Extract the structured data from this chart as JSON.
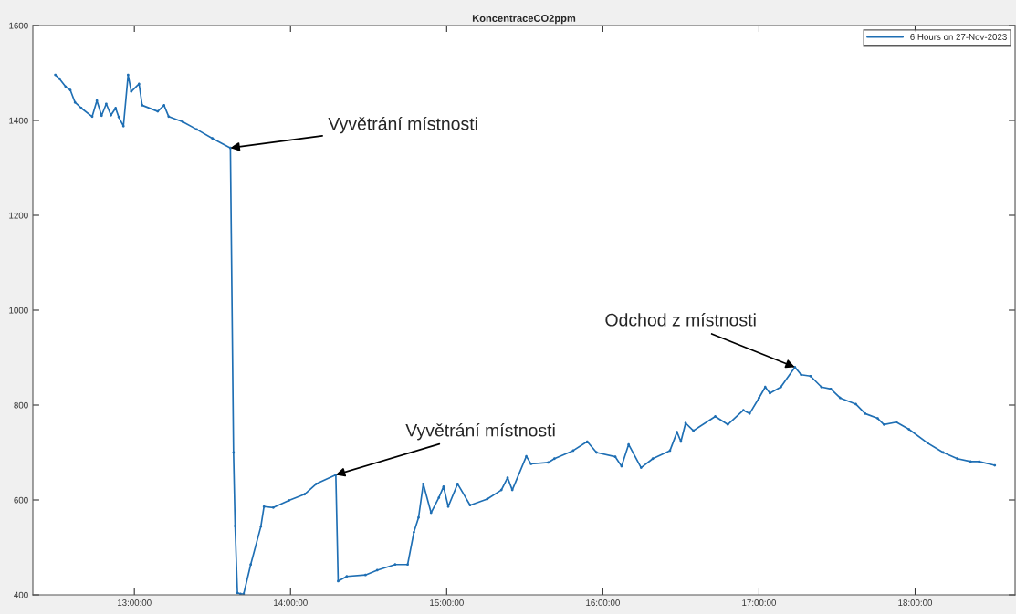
{
  "chart_data": {
    "type": "line",
    "title": "KoncentraceCO2ppm",
    "x": [
      12.494,
      12.52,
      12.56,
      12.59,
      12.62,
      12.66,
      12.73,
      12.76,
      12.79,
      12.82,
      12.85,
      12.88,
      12.9,
      12.93,
      12.96,
      12.98,
      13.03,
      13.05,
      13.15,
      13.19,
      13.22,
      13.31,
      13.4,
      13.5,
      13.615,
      13.635,
      13.645,
      13.66,
      13.68,
      13.7,
      13.745,
      13.81,
      13.83,
      13.89,
      13.99,
      14.09,
      14.165,
      14.29,
      14.305,
      14.36,
      14.48,
      14.555,
      14.67,
      14.75,
      14.79,
      14.82,
      14.85,
      14.9,
      14.95,
      14.98,
      15.01,
      15.07,
      15.15,
      15.26,
      15.35,
      15.39,
      15.42,
      15.51,
      15.54,
      15.65,
      15.69,
      15.81,
      15.9,
      15.96,
      16.08,
      16.12,
      16.165,
      16.245,
      16.32,
      16.43,
      16.475,
      16.5,
      16.53,
      16.58,
      16.72,
      16.8,
      16.9,
      16.94,
      17.0,
      17.04,
      17.07,
      17.14,
      17.23,
      17.27,
      17.33,
      17.4,
      17.46,
      17.52,
      17.62,
      17.68,
      17.76,
      17.8,
      17.88,
      17.96,
      18.08,
      18.18,
      18.27,
      18.355,
      18.41,
      18.51
    ],
    "series": [
      {
        "name": "6 Hours on 27-Nov-2023",
        "color": "#1f6fb4",
        "values": [
          1496,
          1488,
          1471,
          1464,
          1438,
          1426,
          1408,
          1442,
          1410,
          1435,
          1411,
          1426,
          1407,
          1388,
          1496,
          1461,
          1477,
          1432,
          1419,
          1432,
          1408,
          1397,
          1381,
          1362,
          1342,
          700,
          545,
          404,
          402,
          402,
          464,
          544,
          586,
          584,
          599,
          612,
          634,
          653,
          429,
          439,
          442,
          452,
          464,
          464,
          532,
          563,
          634,
          573,
          605,
          628,
          586,
          634,
          589,
          602,
          621,
          647,
          621,
          692,
          676,
          679,
          687,
          704,
          723,
          700,
          691,
          671,
          717,
          668,
          687,
          704,
          743,
          723,
          762,
          746,
          776,
          759,
          789,
          782,
          815,
          838,
          825,
          838,
          880,
          864,
          861,
          838,
          834,
          815,
          802,
          782,
          772,
          759,
          764,
          749,
          720,
          700,
          687,
          681,
          681,
          673
        ]
      }
    ],
    "xlim": [
      12.35,
      18.64
    ],
    "xticks": [
      {
        "value": 13,
        "label": "13:00:00"
      },
      {
        "value": 14,
        "label": "14:00:00"
      },
      {
        "value": 15,
        "label": "15:00:00"
      },
      {
        "value": 16,
        "label": "16:00:00"
      },
      {
        "value": 17,
        "label": "17:00:00"
      },
      {
        "value": 18,
        "label": "18:00:00"
      }
    ],
    "ylim": [
      400,
      1600
    ],
    "yticks": [
      400,
      600,
      800,
      1000,
      1200,
      1400,
      1600
    ],
    "annotations": [
      {
        "text": "Vyvětrání místnosti",
        "x": 13.615,
        "y": 1342
      },
      {
        "text": "Vyvětrání místnosti",
        "x": 14.29,
        "y": 653
      },
      {
        "text": "Odchod z místnosti",
        "x": 17.23,
        "y": 880
      }
    ],
    "legend": "top right",
    "grid": false,
    "marker": "circle",
    "line_style": "solid"
  }
}
